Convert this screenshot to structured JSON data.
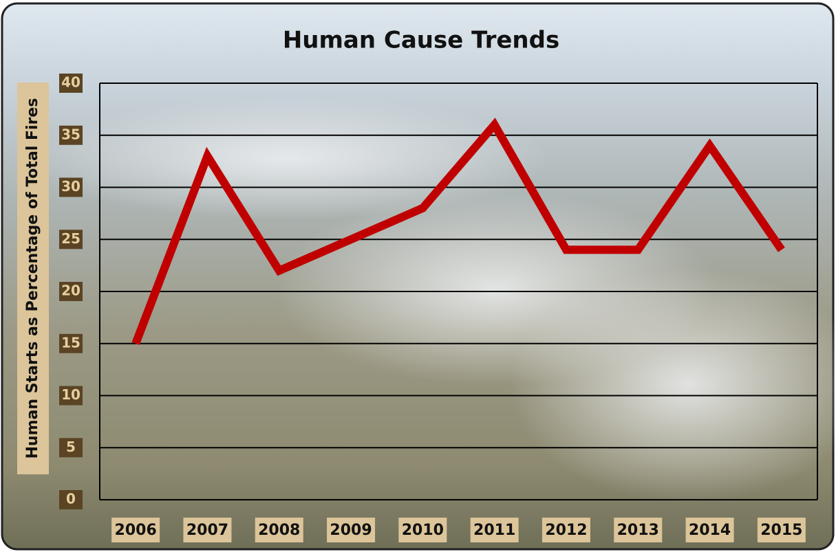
{
  "chart_data": {
    "type": "line",
    "title": "Human Cause Trends",
    "y_label": "Human Starts as Percentage of Total Fires",
    "categories": [
      "2006",
      "2007",
      "2008",
      "2009",
      "2010",
      "2011",
      "2012",
      "2013",
      "2014",
      "2015"
    ],
    "series": [
      {
        "color": "#c00000",
        "values": [
          15,
          33,
          22,
          25,
          28,
          36,
          24,
          24,
          34,
          24
        ]
      }
    ],
    "ylim": [
      0,
      40
    ],
    "yticks": [
      0,
      5,
      10,
      15,
      20,
      25,
      30,
      35,
      40
    ],
    "grid": true
  }
}
